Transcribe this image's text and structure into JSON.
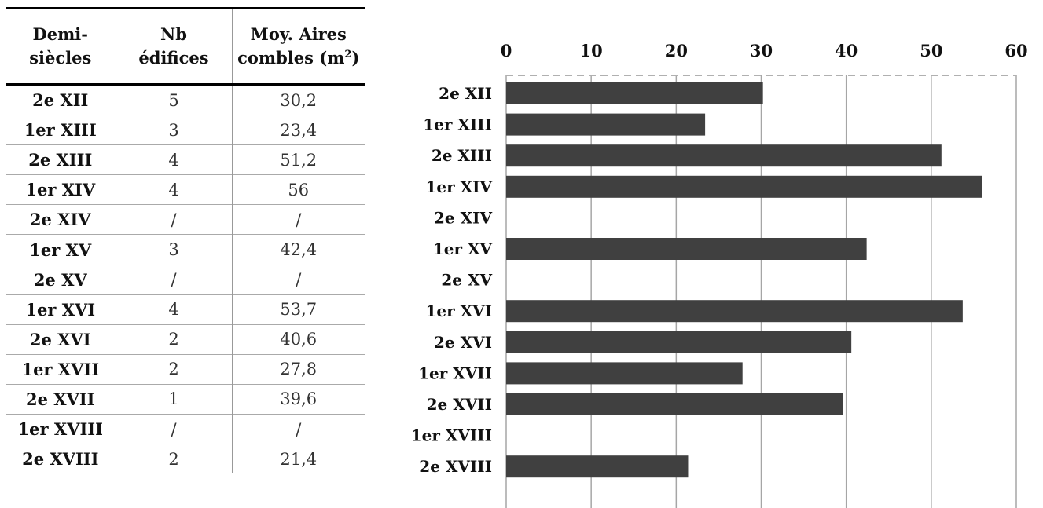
{
  "table": {
    "headers": [
      {
        "line1": "Demi-",
        "line2": "siècles",
        "sup": ""
      },
      {
        "line1": "Nb",
        "line2": "édifices",
        "sup": ""
      },
      {
        "line1": "Moy. Aires",
        "line2": "combles (m",
        "sup": "2",
        "close": ")"
      }
    ],
    "rows": [
      {
        "label": "2e XII",
        "nb": "5",
        "moy": "30,2"
      },
      {
        "label": "1er XIII",
        "nb": "3",
        "moy": "23,4"
      },
      {
        "label": "2e XIII",
        "nb": "4",
        "moy": "51,2"
      },
      {
        "label": "1er XIV",
        "nb": "4",
        "moy": "56"
      },
      {
        "label": "2e XIV",
        "nb": "/",
        "moy": "/"
      },
      {
        "label": "1er XV",
        "nb": "3",
        "moy": "42,4"
      },
      {
        "label": "2e XV",
        "nb": "/",
        "moy": "/"
      },
      {
        "label": "1er XVI",
        "nb": "4",
        "moy": "53,7"
      },
      {
        "label": "2e XVI",
        "nb": "2",
        "moy": "40,6"
      },
      {
        "label": "1er XVII",
        "nb": "2",
        "moy": "27,8"
      },
      {
        "label": "2e XVII",
        "nb": "1",
        "moy": "39,6"
      },
      {
        "label": "1er XVIII",
        "nb": "/",
        "moy": "/"
      },
      {
        "label": "2e XVIII",
        "nb": "2",
        "moy": "21,4"
      }
    ]
  },
  "chart_data": {
    "type": "bar",
    "orientation": "horizontal",
    "categories": [
      "2e XII",
      "1er XIII",
      "2e XIII",
      "1er XIV",
      "2e XIV",
      "1er XV",
      "2e XV",
      "1er XVI",
      "2e XVI",
      "1er XVII",
      "2e XVII",
      "1er XVIII",
      "2e XVIII"
    ],
    "values": [
      30.2,
      23.4,
      51.2,
      56,
      null,
      42.4,
      null,
      53.7,
      40.6,
      27.8,
      39.6,
      null,
      21.4
    ],
    "xlim": [
      0,
      60
    ],
    "ticks": [
      "0",
      "10",
      "20",
      "30",
      "40",
      "50",
      "60"
    ],
    "axis_position": "top",
    "grid": true,
    "bar_color": "#404040",
    "grid_color": "#a6a6a6"
  }
}
